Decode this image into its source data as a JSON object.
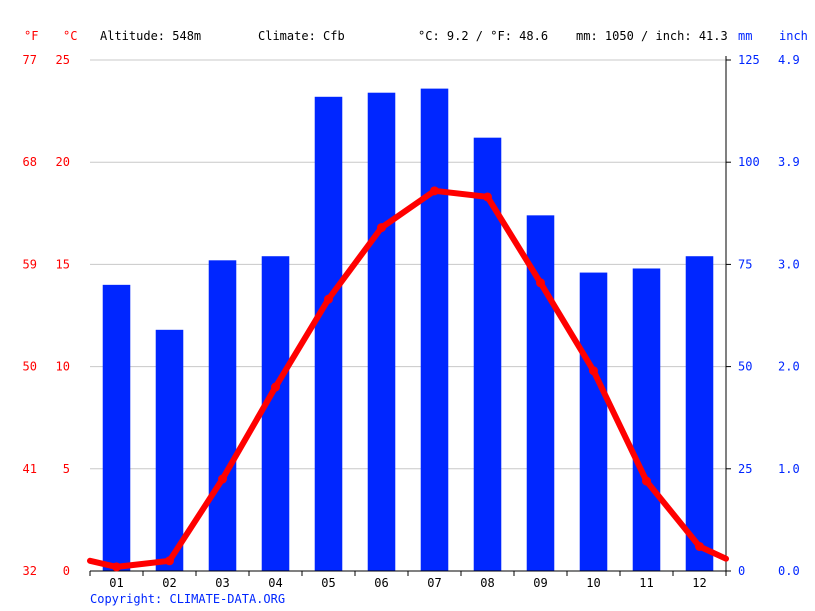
{
  "header": {
    "unit_f": "°F",
    "unit_c": "°C",
    "altitude": "Altitude: 548m",
    "climate": "Climate: Cfb",
    "temp_avg": "°C: 9.2 / °F: 48.6",
    "precip_total": "mm: 1050 / inch: 41.3",
    "unit_mm": "mm",
    "unit_inch": "inch"
  },
  "footer": {
    "copyright": "Copyright: CLIMATE-DATA.ORG"
  },
  "colors": {
    "bars": "#0026ff",
    "line": "#ff0000",
    "left_axis": "#ff0000",
    "right_axis": "#0026ff",
    "grid": "#c8c8c8"
  },
  "chart_data": {
    "type": "bar",
    "categories": [
      "01",
      "02",
      "03",
      "04",
      "05",
      "06",
      "07",
      "08",
      "09",
      "10",
      "11",
      "12"
    ],
    "series": [
      {
        "type": "bar",
        "axis": "precipitation",
        "values": [
          70,
          59,
          76,
          77,
          116,
          117,
          118,
          106,
          87,
          73,
          74,
          77
        ]
      },
      {
        "type": "line",
        "axis": "temperature",
        "values": [
          0.2,
          0.5,
          4.5,
          9.0,
          13.3,
          16.8,
          18.6,
          18.3,
          14.1,
          9.8,
          4.4,
          1.2
        ]
      }
    ],
    "line_edge_values": {
      "left": 0.5,
      "right": 0.6
    },
    "left_axis_c": {
      "ticks": [
        "0",
        "5",
        "10",
        "15",
        "20",
        "25"
      ],
      "range": [
        0,
        25
      ]
    },
    "left_axis_f": {
      "ticks": [
        "32",
        "41",
        "50",
        "59",
        "68",
        "77"
      ]
    },
    "right_axis_mm": {
      "ticks": [
        "0",
        "25",
        "50",
        "75",
        "100",
        "125"
      ],
      "range": [
        0,
        125
      ]
    },
    "right_axis_inch": {
      "ticks": [
        "0.0",
        "1.0",
        "2.0",
        "3.0",
        "3.9",
        "4.9"
      ]
    },
    "grid": true
  }
}
